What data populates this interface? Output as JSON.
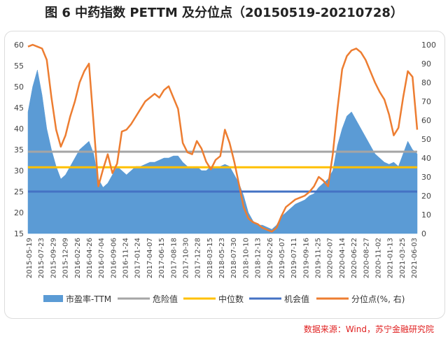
{
  "title": "图 6  中药指数 PETTM 及分位点（20150519-20210728）",
  "source": "数据来源：Wind，苏宁金融研究院",
  "colors": {
    "pe": "#5b9bd5",
    "danger": "#a5a5a5",
    "median": "#ffc000",
    "opportunity": "#4472c4",
    "pct": "#ed7d31"
  },
  "chart_data": {
    "type": "area",
    "y_left_range": [
      15,
      60
    ],
    "y_left_ticks": [
      "15",
      "20",
      "25",
      "30",
      "35",
      "40",
      "45",
      "50",
      "55",
      "60"
    ],
    "y_right_range": [
      0,
      100
    ],
    "y_right_ticks": [
      "0",
      "10",
      "20",
      "30",
      "40",
      "50",
      "60",
      "70",
      "80",
      "90",
      "100"
    ],
    "x_ticks": [
      "2015-05-19",
      "2015-07-23",
      "2015-09-29",
      "2015-12-09",
      "2016-02-26",
      "2016-04-26",
      "2016-07-04",
      "2016-09-06",
      "2016-11-24",
      "2017-01-24",
      "2017-04-07",
      "2017-06-15",
      "2017-08-18",
      "2017-10-30",
      "2017-12-28",
      "2018-03-15",
      "2018-05-23",
      "2018-07-30",
      "2018-10-10",
      "2018-12-13",
      "2019-02-26",
      "2019-05-07",
      "2019-07-11",
      "2019-09-16",
      "2019-11-25",
      "2020-02-07",
      "2020-04-14",
      "2020-06-22",
      "2020-08-27",
      "2020-11-02",
      "2021-01-13",
      "2021-03-25",
      "2021-06-03"
    ],
    "legend": [
      "市盈率-TTM",
      "危险值",
      "中位数",
      "机会值",
      "分位点(%, 右)"
    ],
    "legend_position": "bottom",
    "danger": 34.5,
    "median": 30.8,
    "opportunity": 25.0,
    "series": [
      {
        "name": "市盈率-TTM",
        "axis": "left",
        "points": [
          [
            0,
            44
          ],
          [
            0.5,
            50
          ],
          [
            1,
            54
          ],
          [
            1.5,
            48
          ],
          [
            2,
            40
          ],
          [
            2.5,
            35
          ],
          [
            3,
            31
          ],
          [
            3.5,
            28
          ],
          [
            4,
            29
          ],
          [
            4.5,
            31
          ],
          [
            5,
            33
          ],
          [
            5.5,
            35
          ],
          [
            6,
            36
          ],
          [
            6.5,
            37
          ],
          [
            7,
            34
          ],
          [
            7.5,
            28
          ],
          [
            8,
            26
          ],
          [
            8.5,
            27
          ],
          [
            9,
            29
          ],
          [
            9.5,
            31
          ],
          [
            10,
            30
          ],
          [
            10.5,
            29
          ],
          [
            11,
            30
          ],
          [
            11.5,
            31
          ],
          [
            12,
            31
          ],
          [
            12.5,
            31.5
          ],
          [
            13,
            32
          ],
          [
            13.5,
            32
          ],
          [
            14,
            32.5
          ],
          [
            14.5,
            33
          ],
          [
            15,
            33
          ],
          [
            15.5,
            33.5
          ],
          [
            16,
            33.5
          ],
          [
            16.5,
            32
          ],
          [
            17,
            31
          ],
          [
            17.5,
            30.5
          ],
          [
            18,
            31
          ],
          [
            18.5,
            30
          ],
          [
            19,
            30
          ],
          [
            19.5,
            31
          ],
          [
            20,
            30.5
          ],
          [
            20.5,
            31
          ],
          [
            21,
            31.5
          ],
          [
            21.5,
            31
          ],
          [
            22,
            29
          ],
          [
            22.5,
            27
          ],
          [
            23,
            24
          ],
          [
            23.5,
            20
          ],
          [
            24,
            18
          ],
          [
            24.5,
            17
          ],
          [
            25,
            17
          ],
          [
            25.5,
            16.5
          ],
          [
            26,
            16
          ],
          [
            26.5,
            17
          ],
          [
            27,
            19
          ],
          [
            27.5,
            20
          ],
          [
            28,
            21
          ],
          [
            28.5,
            22
          ],
          [
            29,
            22.5
          ],
          [
            29.5,
            23
          ],
          [
            30,
            24
          ],
          [
            30.5,
            24.5
          ],
          [
            31,
            26
          ],
          [
            31.5,
            27
          ],
          [
            32,
            28
          ],
          [
            32.5,
            30
          ],
          [
            33,
            36
          ],
          [
            33.5,
            40
          ],
          [
            34,
            43
          ],
          [
            34.5,
            44
          ],
          [
            35,
            42
          ],
          [
            35.5,
            40
          ],
          [
            36,
            38
          ],
          [
            36.5,
            36
          ],
          [
            37,
            34
          ],
          [
            37.5,
            33
          ],
          [
            38,
            32
          ],
          [
            38.5,
            31.5
          ],
          [
            39,
            32
          ],
          [
            39.5,
            31
          ],
          [
            40,
            34
          ],
          [
            40.5,
            37
          ],
          [
            41,
            35
          ],
          [
            41.5,
            34
          ]
        ]
      },
      {
        "name": "分位点(%, 右)",
        "axis": "right",
        "points": [
          [
            0,
            99
          ],
          [
            0.5,
            100
          ],
          [
            1,
            99
          ],
          [
            1.5,
            98
          ],
          [
            2,
            92
          ],
          [
            2.5,
            72
          ],
          [
            3,
            55
          ],
          [
            3.5,
            46
          ],
          [
            4,
            52
          ],
          [
            4.5,
            62
          ],
          [
            5,
            70
          ],
          [
            5.5,
            80
          ],
          [
            6,
            86
          ],
          [
            6.5,
            90
          ],
          [
            7,
            58
          ],
          [
            7.5,
            25
          ],
          [
            8,
            34
          ],
          [
            8.5,
            42
          ],
          [
            9,
            32
          ],
          [
            9.5,
            37
          ],
          [
            10,
            54
          ],
          [
            10.5,
            55
          ],
          [
            11,
            58
          ],
          [
            11.5,
            62
          ],
          [
            12,
            66
          ],
          [
            12.5,
            70
          ],
          [
            13,
            72
          ],
          [
            13.5,
            74
          ],
          [
            14,
            72
          ],
          [
            14.5,
            76
          ],
          [
            15,
            78
          ],
          [
            15.5,
            72
          ],
          [
            16,
            66
          ],
          [
            16.5,
            48
          ],
          [
            17,
            43
          ],
          [
            17.5,
            42
          ],
          [
            18,
            49
          ],
          [
            18.5,
            45
          ],
          [
            19,
            38
          ],
          [
            19.5,
            34
          ],
          [
            20,
            39
          ],
          [
            20.5,
            41
          ],
          [
            21,
            55
          ],
          [
            21.5,
            48
          ],
          [
            22,
            38
          ],
          [
            22.5,
            26
          ],
          [
            23,
            14
          ],
          [
            23.5,
            8
          ],
          [
            24,
            6
          ],
          [
            24.5,
            5
          ],
          [
            25,
            3
          ],
          [
            25.5,
            2
          ],
          [
            26,
            1
          ],
          [
            26.5,
            3
          ],
          [
            27,
            9
          ],
          [
            27.5,
            14
          ],
          [
            28,
            16
          ],
          [
            28.5,
            18
          ],
          [
            29,
            19
          ],
          [
            29.5,
            20
          ],
          [
            30,
            22
          ],
          [
            30.5,
            25
          ],
          [
            31,
            30
          ],
          [
            31.5,
            28
          ],
          [
            32,
            25
          ],
          [
            32.5,
            42
          ],
          [
            33,
            66
          ],
          [
            33.5,
            87
          ],
          [
            34,
            94
          ],
          [
            34.5,
            97
          ],
          [
            35,
            98
          ],
          [
            35.5,
            96
          ],
          [
            36,
            92
          ],
          [
            36.5,
            86
          ],
          [
            37,
            80
          ],
          [
            37.5,
            75
          ],
          [
            38,
            71
          ],
          [
            38.5,
            63
          ],
          [
            39,
            52
          ],
          [
            39.5,
            56
          ],
          [
            40,
            72
          ],
          [
            40.5,
            86
          ],
          [
            41,
            83
          ],
          [
            41.5,
            55
          ]
        ]
      }
    ]
  }
}
